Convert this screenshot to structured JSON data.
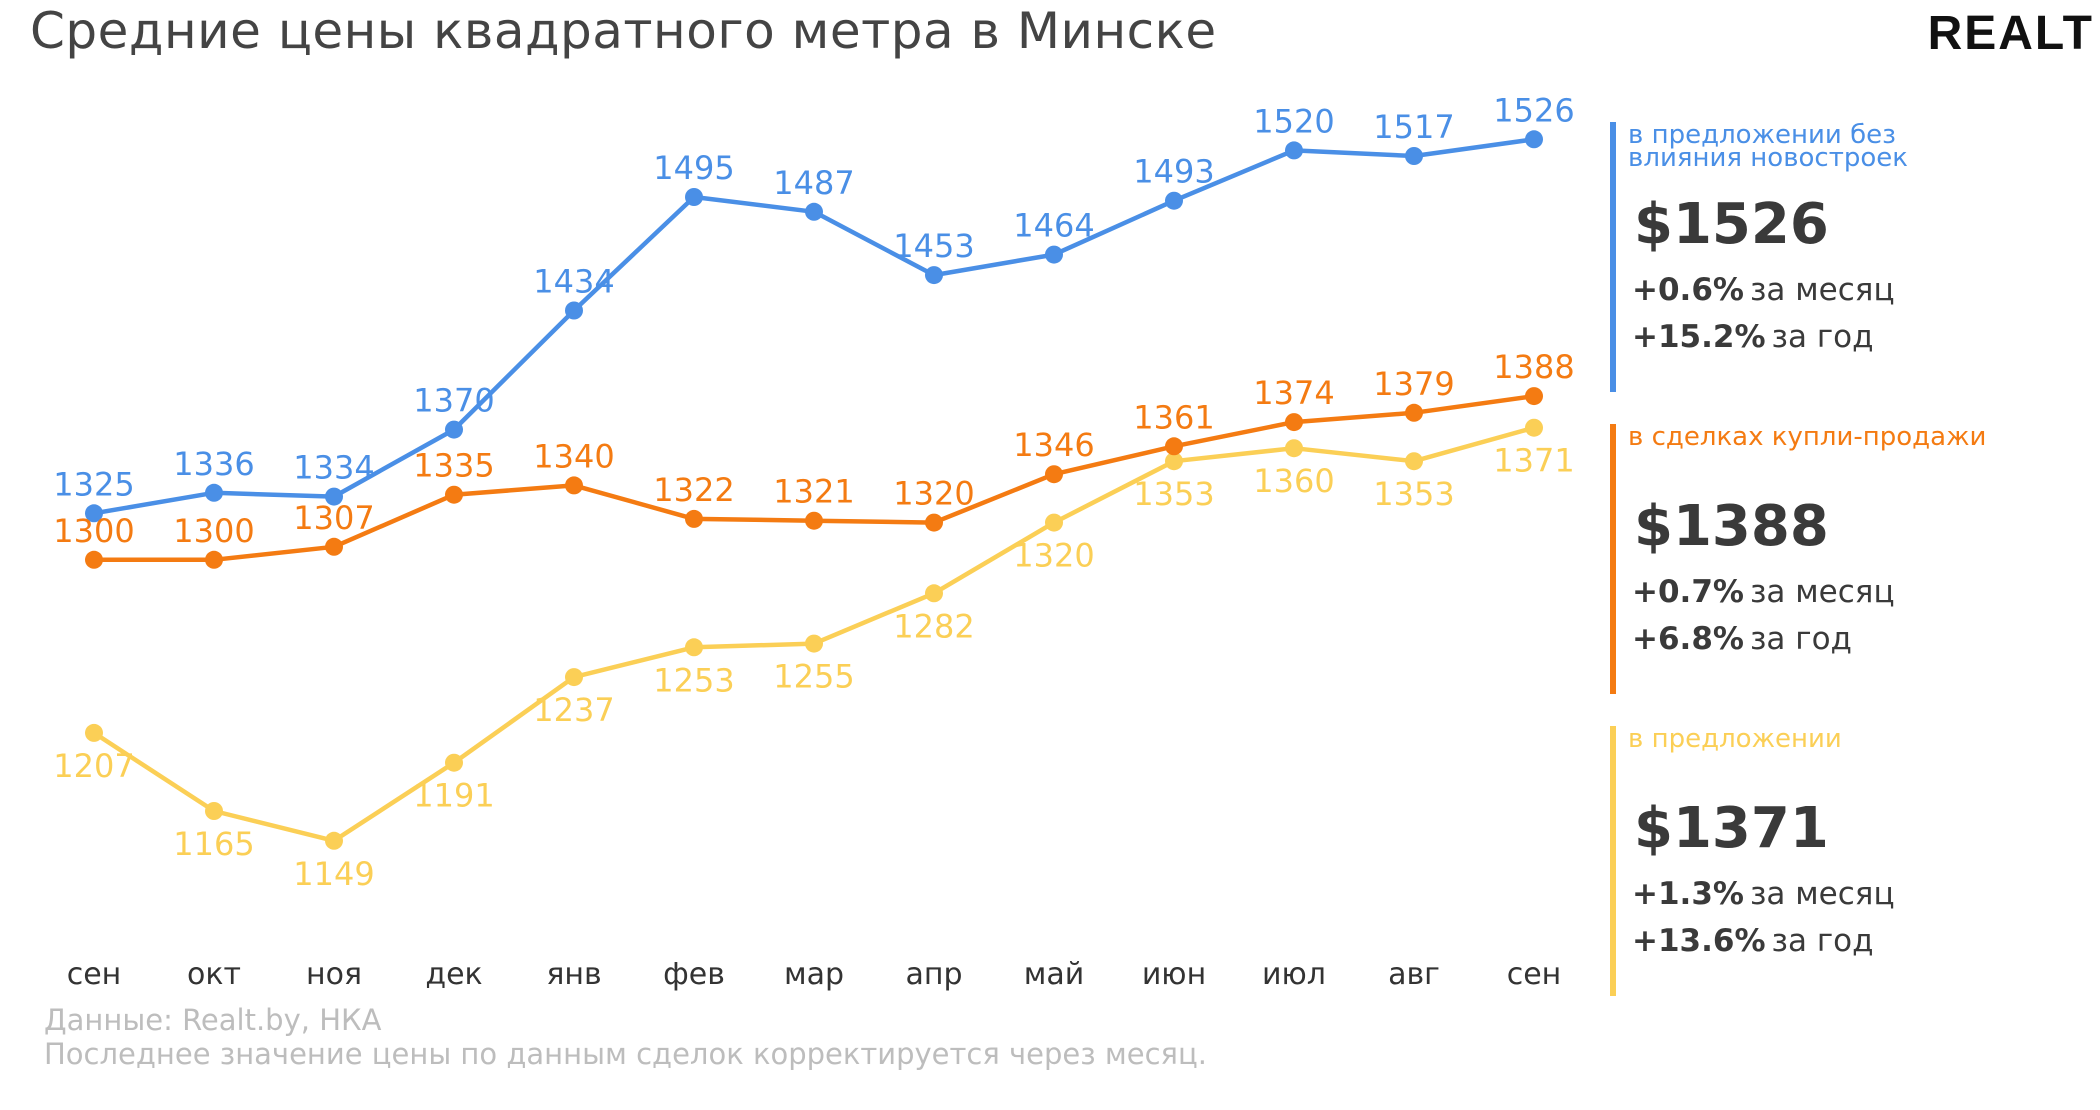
{
  "title": "Средние цены квадратного метра в Минске",
  "logo": "REALT",
  "footer": {
    "source": "Данные: Realt.by, НКА",
    "note": "Последнее значение цены по данным сделок корректируется через месяц."
  },
  "chart_data": {
    "type": "line",
    "categories": [
      "сен",
      "окт",
      "ноя",
      "дек",
      "янв",
      "фев",
      "мар",
      "апр",
      "май",
      "июн",
      "июл",
      "авг",
      "сен"
    ],
    "ylim": [
      1100,
      1560
    ],
    "grid": false,
    "legend": "right",
    "series": [
      {
        "name": "в предложении без влияния новостроек",
        "color": "#4a8fe6",
        "values": [
          1325,
          1336,
          1334,
          1370,
          1434,
          1495,
          1487,
          1453,
          1464,
          1493,
          1520,
          1517,
          1526
        ],
        "label_position": "above"
      },
      {
        "name": "в сделках купли-продажи",
        "color": "#f47b12",
        "values": [
          1300,
          1300,
          1307,
          1335,
          1340,
          1322,
          1321,
          1320,
          1346,
          1361,
          1374,
          1379,
          1388
        ],
        "label_position": "above"
      },
      {
        "name": "в предложении",
        "color": "#fbcf56",
        "values": [
          1207,
          1165,
          1149,
          1191,
          1237,
          1253,
          1255,
          1282,
          1320,
          1353,
          1360,
          1353,
          1371
        ],
        "label_position": "below"
      }
    ]
  },
  "panels": [
    {
      "color": "#4a8fe6",
      "label_line1": "в предложении без",
      "label_line2": "влияния новостроек",
      "value": "$1526",
      "month_change": "+0.6%",
      "month_text": "за месяц",
      "year_change": "+15.2%",
      "year_text": "за год"
    },
    {
      "color": "#f47b12",
      "label_line1": "в сделках купли-продажи",
      "label_line2": "",
      "value": "$1388",
      "month_change": "+0.7%",
      "month_text": "за месяц",
      "year_change": "+6.8%",
      "year_text": "за год"
    },
    {
      "color": "#fbcf56",
      "label_line1": "в предложении",
      "label_line2": "",
      "value": "$1371",
      "month_change": "+1.3%",
      "month_text": "за месяц",
      "year_change": "+13.6%",
      "year_text": "за год"
    }
  ]
}
